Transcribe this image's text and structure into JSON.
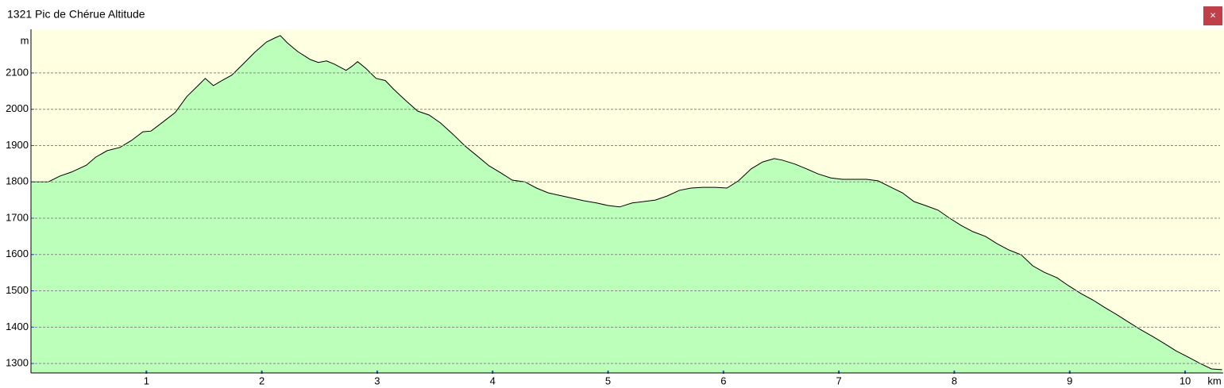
{
  "window": {
    "close_label": "×"
  },
  "chart_data": {
    "type": "area",
    "title": "1321 Pic de Chérue Altitude",
    "y_label": "m",
    "x_label": "km",
    "fill_color": "#bbffbb",
    "line_color": "#000000",
    "background": "#ffffe1",
    "grid": true,
    "xlim": [
      0,
      10.33
    ],
    "ylim": [
      1274,
      2220
    ],
    "xticks": [
      1,
      2,
      3,
      4,
      5,
      6,
      7,
      8,
      9,
      10
    ],
    "yticks": [
      1300,
      1400,
      1500,
      1600,
      1700,
      1800,
      1900,
      2000,
      2100
    ],
    "x": [
      0,
      0.15,
      0.25,
      0.35,
      0.48,
      0.56,
      0.66,
      0.77,
      0.87,
      0.97,
      1.04,
      1.14,
      1.25,
      1.35,
      1.46,
      1.51,
      1.58,
      1.66,
      1.74,
      1.83,
      1.94,
      2.04,
      2.11,
      2.16,
      2.22,
      2.31,
      2.42,
      2.49,
      2.56,
      2.63,
      2.73,
      2.78,
      2.83,
      2.9,
      2.99,
      3.07,
      3.14,
      3.24,
      3.35,
      3.45,
      3.55,
      3.66,
      3.76,
      3.86,
      3.97,
      4.07,
      4.17,
      4.28,
      4.38,
      4.48,
      4.58,
      4.69,
      4.79,
      4.9,
      5.0,
      5.1,
      5.21,
      5.31,
      5.41,
      5.51,
      5.62,
      5.72,
      5.82,
      5.93,
      6.03,
      6.13,
      6.24,
      6.34,
      6.44,
      6.51,
      6.62,
      6.72,
      6.82,
      6.93,
      7.03,
      7.13,
      7.24,
      7.34,
      7.44,
      7.55,
      7.65,
      7.75,
      7.86,
      7.96,
      8.06,
      8.16,
      8.27,
      8.37,
      8.47,
      8.58,
      8.68,
      8.78,
      8.89,
      8.99,
      9.1,
      9.2,
      9.3,
      9.4,
      9.51,
      9.61,
      9.72,
      9.82,
      9.92,
      10.03,
      10.13,
      10.23,
      10.32
    ],
    "values": [
      1800,
      1800,
      1816,
      1827,
      1846,
      1868,
      1886,
      1895,
      1914,
      1938,
      1940,
      1964,
      1991,
      2035,
      2069,
      2085,
      2065,
      2080,
      2094,
      2122,
      2157,
      2185,
      2196,
      2203,
      2183,
      2159,
      2137,
      2129,
      2133,
      2124,
      2107,
      2118,
      2131,
      2113,
      2085,
      2079,
      2056,
      2026,
      1995,
      1984,
      1962,
      1930,
      1899,
      1873,
      1844,
      1825,
      1805,
      1800,
      1783,
      1770,
      1763,
      1755,
      1748,
      1742,
      1735,
      1731,
      1742,
      1746,
      1750,
      1761,
      1777,
      1783,
      1785,
      1785,
      1783,
      1803,
      1836,
      1855,
      1864,
      1860,
      1849,
      1836,
      1822,
      1811,
      1807,
      1807,
      1807,
      1803,
      1787,
      1770,
      1746,
      1735,
      1722,
      1700,
      1680,
      1663,
      1650,
      1630,
      1613,
      1599,
      1569,
      1551,
      1536,
      1514,
      1492,
      1475,
      1455,
      1436,
      1414,
      1394,
      1374,
      1355,
      1335,
      1317,
      1300,
      1285,
      1283
    ]
  }
}
